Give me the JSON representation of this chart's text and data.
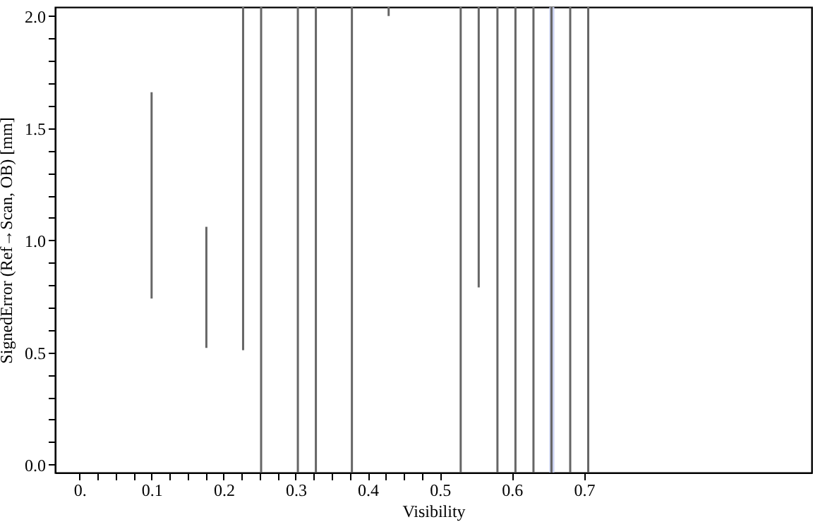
{
  "chart_data": {
    "type": "bar",
    "xlabel": "Visibility",
    "ylabel": "SignedError (Ref→Scan, OB) [mm]",
    "x": [
      0.1,
      0.176,
      0.227,
      0.252,
      0.303,
      0.328,
      0.378,
      0.429,
      0.529,
      0.554,
      0.58,
      0.605,
      0.63,
      0.655,
      0.681,
      0.706
    ],
    "base": [
      0.74,
      0.52,
      0.51,
      -0.036,
      -0.036,
      -0.036,
      -0.036,
      2.0,
      -0.036,
      0.79,
      -0.036,
      -0.036,
      -0.036,
      -0.036,
      -0.036,
      -0.036
    ],
    "values": [
      0.92,
      0.54,
      1.53,
      2.076,
      2.076,
      2.076,
      2.076,
      0.04,
      2.076,
      1.25,
      2.076,
      2.076,
      2.076,
      2.076,
      2.076,
      2.076
    ],
    "color": "#666666",
    "xlim": [
      -0.034,
      1.016
    ],
    "ylim": [
      -0.036,
      2.04
    ],
    "xticks": [
      {
        "value": 0,
        "label": "0."
      },
      {
        "value": 0.025,
        "label": null
      },
      {
        "value": 0.05,
        "label": null
      },
      {
        "value": 0.075,
        "label": null
      },
      0.1,
      {
        "value": 0.125,
        "label": null
      },
      {
        "value": 0.15,
        "label": null
      },
      {
        "value": 0.175,
        "label": null
      },
      0.2,
      {
        "value": 0.225,
        "label": null
      },
      {
        "value": 0.25,
        "label": null
      },
      {
        "value": 0.275,
        "label": null
      },
      0.3,
      {
        "value": 0.325,
        "label": null
      },
      {
        "value": 0.35,
        "label": null
      },
      {
        "value": 0.375,
        "label": null
      },
      0.4,
      {
        "value": 0.425,
        "label": null
      },
      {
        "value": 0.45,
        "label": null
      },
      {
        "value": 0.475,
        "label": null
      },
      0.5,
      0.6,
      0.7
    ],
    "yticks": [
      {
        "value": 0,
        "label": "0.0"
      },
      {
        "value": 0.1,
        "label": null
      },
      {
        "value": 0.2,
        "label": null
      },
      {
        "value": 0.3,
        "label": null
      },
      {
        "value": 0.4,
        "label": null
      },
      {
        "value": 0.5,
        "label": "0.5"
      },
      {
        "value": 0.6,
        "label": null
      },
      {
        "value": 0.7,
        "label": null
      },
      {
        "value": 0.8,
        "label": null
      },
      {
        "value": 0.9,
        "label": null
      },
      {
        "value": 1,
        "label": "1.0"
      },
      {
        "value": 1.1,
        "label": null
      },
      {
        "value": 1.2,
        "label": null
      },
      {
        "value": 1.3,
        "label": null
      },
      {
        "value": 1.4,
        "label": null
      },
      {
        "value": 1.5,
        "label": "1.5"
      },
      {
        "value": 1.6,
        "label": null
      },
      {
        "value": 1.7,
        "label": null
      },
      {
        "value": 1.8,
        "label": null
      },
      {
        "value": 1.9,
        "label": null
      },
      {
        "value": 2,
        "label": "2.0"
      }
    ],
    "bands": [
      {
        "axis": "x",
        "from": 0.652,
        "to": 0.659,
        "color": "#c5cdf0"
      }
    ],
    "grid": false
  }
}
